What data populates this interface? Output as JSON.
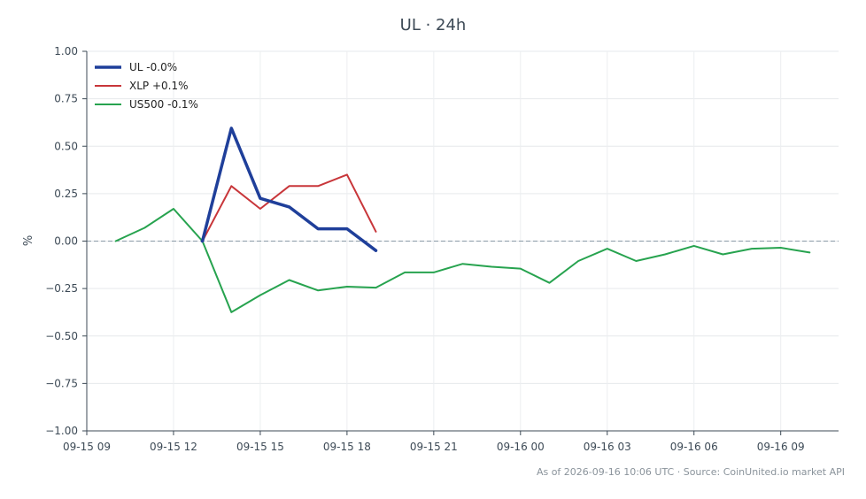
{
  "chart_data": {
    "type": "line",
    "title": "UL · 24h",
    "xlabel": "",
    "ylabel": "%",
    "ylim": [
      -1.0,
      1.0
    ],
    "xlim": [
      "2026-09-15 09:00",
      "2026-09-16 11:00"
    ],
    "x_ticks": [
      {
        "at": "2026-09-15 09:00",
        "label": "09-15 09"
      },
      {
        "at": "2026-09-15 12:00",
        "label": "09-15 12"
      },
      {
        "at": "2026-09-15 15:00",
        "label": "09-15 15"
      },
      {
        "at": "2026-09-15 18:00",
        "label": "09-15 18"
      },
      {
        "at": "2026-09-15 21:00",
        "label": "09-15 21"
      },
      {
        "at": "2026-09-16 00:00",
        "label": "09-16 00"
      },
      {
        "at": "2026-09-16 03:00",
        "label": "09-16 03"
      },
      {
        "at": "2026-09-16 06:00",
        "label": "09-16 06"
      },
      {
        "at": "2026-09-16 09:00",
        "label": "09-16 09"
      }
    ],
    "y_ticks": [
      {
        "v": 1.0,
        "label": "1.00"
      },
      {
        "v": 0.75,
        "label": "0.75"
      },
      {
        "v": 0.5,
        "label": "0.50"
      },
      {
        "v": 0.25,
        "label": "0.25"
      },
      {
        "v": 0.0,
        "label": "0.00"
      },
      {
        "v": -0.25,
        "label": "−0.25"
      },
      {
        "v": -0.5,
        "label": "−0.50"
      },
      {
        "v": -0.75,
        "label": "−0.75"
      },
      {
        "v": -1.0,
        "label": "−1.00"
      }
    ],
    "grid": true,
    "legend_position": "top-left",
    "zero_line": true,
    "series": [
      {
        "name": "UL -0.0%",
        "color": "#1f3f9a",
        "x": [
          "2026-09-15 13:00",
          "2026-09-15 14:00",
          "2026-09-15 15:00",
          "2026-09-15 16:00",
          "2026-09-15 17:00",
          "2026-09-15 18:00",
          "2026-09-15 19:00"
        ],
        "y": [
          0.0,
          0.595,
          0.225,
          0.18,
          0.065,
          0.065,
          -0.05
        ]
      },
      {
        "name": "XLP +0.1%",
        "color": "#c8363a",
        "x": [
          "2026-09-15 13:00",
          "2026-09-15 14:00",
          "2026-09-15 15:00",
          "2026-09-15 16:00",
          "2026-09-15 17:00",
          "2026-09-15 18:00",
          "2026-09-15 19:00"
        ],
        "y": [
          0.0,
          0.29,
          0.17,
          0.29,
          0.29,
          0.35,
          0.05
        ]
      },
      {
        "name": "US500 -0.1%",
        "color": "#27a34f",
        "x": [
          "2026-09-15 10:00",
          "2026-09-15 11:00",
          "2026-09-15 12:00",
          "2026-09-15 13:00",
          "2026-09-15 14:00",
          "2026-09-15 15:00",
          "2026-09-15 16:00",
          "2026-09-15 17:00",
          "2026-09-15 18:00",
          "2026-09-15 19:00",
          "2026-09-15 20:00",
          "2026-09-15 21:00",
          "2026-09-15 22:00",
          "2026-09-15 23:00",
          "2026-09-16 00:00",
          "2026-09-16 01:00",
          "2026-09-16 02:00",
          "2026-09-16 03:00",
          "2026-09-16 04:00",
          "2026-09-16 05:00",
          "2026-09-16 06:00",
          "2026-09-16 07:00",
          "2026-09-16 08:00",
          "2026-09-16 09:00",
          "2026-09-16 10:00"
        ],
        "y": [
          0.0,
          0.07,
          0.17,
          0.0,
          -0.375,
          -0.285,
          -0.205,
          -0.26,
          -0.24,
          -0.245,
          -0.165,
          -0.165,
          -0.12,
          -0.135,
          -0.145,
          -0.22,
          -0.105,
          -0.04,
          -0.105,
          -0.07,
          -0.025,
          -0.07,
          -0.04,
          -0.035,
          -0.06
        ]
      }
    ]
  },
  "footer": {
    "text": "As of 2026-09-16 10:06 UTC · Source: CoinUnited.io market API"
  }
}
